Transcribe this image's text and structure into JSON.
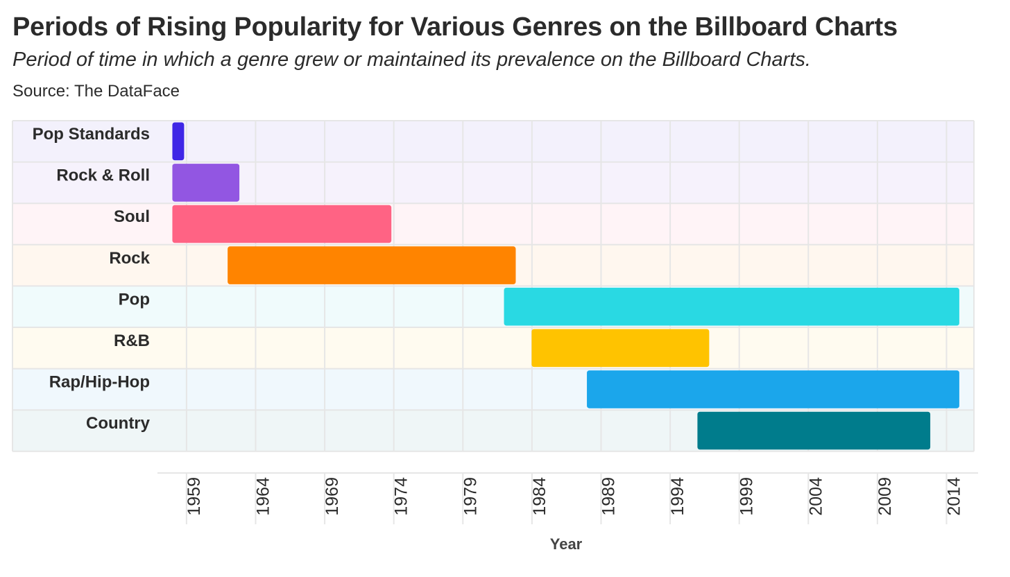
{
  "chart_data": {
    "type": "gantt",
    "title": "Periods of Rising Popularity for Various Genres on the Billboard Charts",
    "subtitle": "Period of time in which a genre grew or maintained its prevalence on the Billboard Charts.",
    "source": "Source: The DataFace",
    "xlabel": "Year",
    "xlim": [
      1957,
      2015
    ],
    "xticks": [
      1959,
      1964,
      1969,
      1974,
      1979,
      1984,
      1989,
      1994,
      1999,
      2004,
      2009,
      2014
    ],
    "grid": true,
    "categories": [
      "Pop Standards",
      "Rock & Roll",
      "Soul",
      "Rock",
      "Pop",
      "R&B",
      "Rap/Hip-Hop",
      "Country"
    ],
    "series": [
      {
        "name": "Pop Standards",
        "start": 1958.0,
        "end": 1958.8,
        "color": "#3f27e6",
        "band": "#f3f1fc"
      },
      {
        "name": "Rock & Roll",
        "start": 1958.0,
        "end": 1962.8,
        "color": "#9256e2",
        "band": "#f6f2fc"
      },
      {
        "name": "Soul",
        "start": 1958.0,
        "end": 1973.8,
        "color": "#ff6384",
        "band": "#fff4f7"
      },
      {
        "name": "Rock",
        "start": 1962.0,
        "end": 1982.8,
        "color": "#ff8400",
        "band": "#fff7ef"
      },
      {
        "name": "Pop",
        "start": 1982.0,
        "end": 2014.9,
        "color": "#29d9e3",
        "band": "#f0fbfc"
      },
      {
        "name": "R&B",
        "start": 1984.0,
        "end": 1996.8,
        "color": "#ffc300",
        "band": "#fffbf0"
      },
      {
        "name": "Rap/Hip-Hop",
        "start": 1988.0,
        "end": 2014.9,
        "color": "#1ba6eb",
        "band": "#f0f8fd"
      },
      {
        "name": "Country",
        "start": 1996.0,
        "end": 2012.8,
        "color": "#007c8c",
        "band": "#eff6f7"
      }
    ]
  }
}
